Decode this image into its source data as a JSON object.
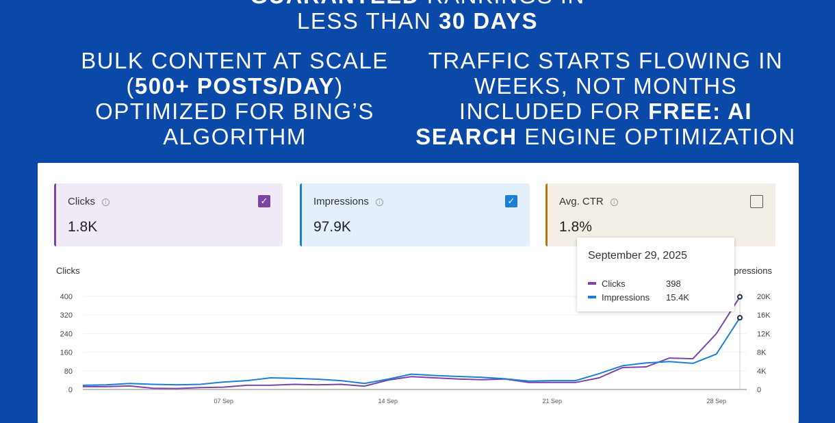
{
  "headline": {
    "line0_bold": "GUARANTEED",
    "line0_rest": " RANKINGS IN",
    "line1_plain": "LESS THAN ",
    "line1_bold": "30 DAYS"
  },
  "left_column": {
    "line1": "BULK CONTENT AT SCALE",
    "line2_open": "(",
    "line2_bold": "500+ POSTS/DAY",
    "line2_close": ")",
    "line3": "OPTIMIZED FOR BING’S",
    "line4": "ALGORITHM"
  },
  "right_column": {
    "line1": "TRAFFIC STARTS FLOWING IN",
    "line2": "WEEKS, NOT MONTHS",
    "line3_plain": "INCLUDED FOR ",
    "line3_bold": "FREE: AI",
    "line4_bold": "SEARCH",
    "line4_rest": " ENGINE OPTIMIZATION"
  },
  "metrics": [
    {
      "label": "Clicks",
      "value": "1.8K",
      "checked": true,
      "color": "#7b45a8",
      "bg": "#f0eaf6"
    },
    {
      "label": "Impressions",
      "value": "97.9K",
      "checked": true,
      "color": "#1a7fd6",
      "bg": "#e3f0fb"
    },
    {
      "label": "Avg. CTR",
      "value": "1.8%",
      "checked": false,
      "color": "#a87a0f",
      "bg": "#f3efe6"
    }
  ],
  "tooltip": {
    "date": "September 29, 2025",
    "rows": [
      {
        "name": "Clicks",
        "value": "398",
        "color": "#7b45a8"
      },
      {
        "name": "Impressions",
        "value": "15.4K",
        "color": "#1a7fd6"
      }
    ]
  },
  "chart_data": {
    "type": "line",
    "left_axis_label": "Clicks",
    "right_axis_label": "Impressions",
    "x": [
      "01 Sep",
      "02 Sep",
      "03 Sep",
      "04 Sep",
      "05 Sep",
      "06 Sep",
      "07 Sep",
      "08 Sep",
      "09 Sep",
      "10 Sep",
      "11 Sep",
      "12 Sep",
      "13 Sep",
      "14 Sep",
      "15 Sep",
      "16 Sep",
      "17 Sep",
      "18 Sep",
      "19 Sep",
      "20 Sep",
      "21 Sep",
      "22 Sep",
      "23 Sep",
      "24 Sep",
      "25 Sep",
      "26 Sep",
      "27 Sep",
      "28 Sep",
      "29 Sep"
    ],
    "x_tick_labels": [
      "07 Sep",
      "14 Sep",
      "21 Sep",
      "28 Sep"
    ],
    "y_left_ticks": [
      "0",
      "80",
      "160",
      "240",
      "320",
      "400"
    ],
    "y_right_ticks": [
      "0",
      "4K",
      "8K",
      "12K",
      "16K",
      "20K"
    ],
    "ylim_left": [
      0,
      400
    ],
    "ylim_right": [
      0,
      20000
    ],
    "grid": true,
    "series": [
      {
        "name": "Clicks",
        "axis": "left",
        "color": "#7b45a8",
        "values": [
          12,
          12,
          15,
          5,
          4,
          8,
          10,
          18,
          18,
          22,
          20,
          22,
          14,
          40,
          55,
          50,
          45,
          42,
          45,
          30,
          30,
          30,
          50,
          94,
          97,
          135,
          132,
          240,
          398
        ]
      },
      {
        "name": "Impressions",
        "axis": "right",
        "color": "#1a7fd6",
        "values": [
          900,
          1000,
          1300,
          1100,
          1000,
          1100,
          1600,
          1900,
          2500,
          2400,
          2200,
          1900,
          1300,
          2200,
          3300,
          3000,
          2800,
          2600,
          2300,
          1800,
          1900,
          1900,
          3400,
          5100,
          5700,
          6000,
          5600,
          7600,
          15400
        ]
      }
    ]
  }
}
